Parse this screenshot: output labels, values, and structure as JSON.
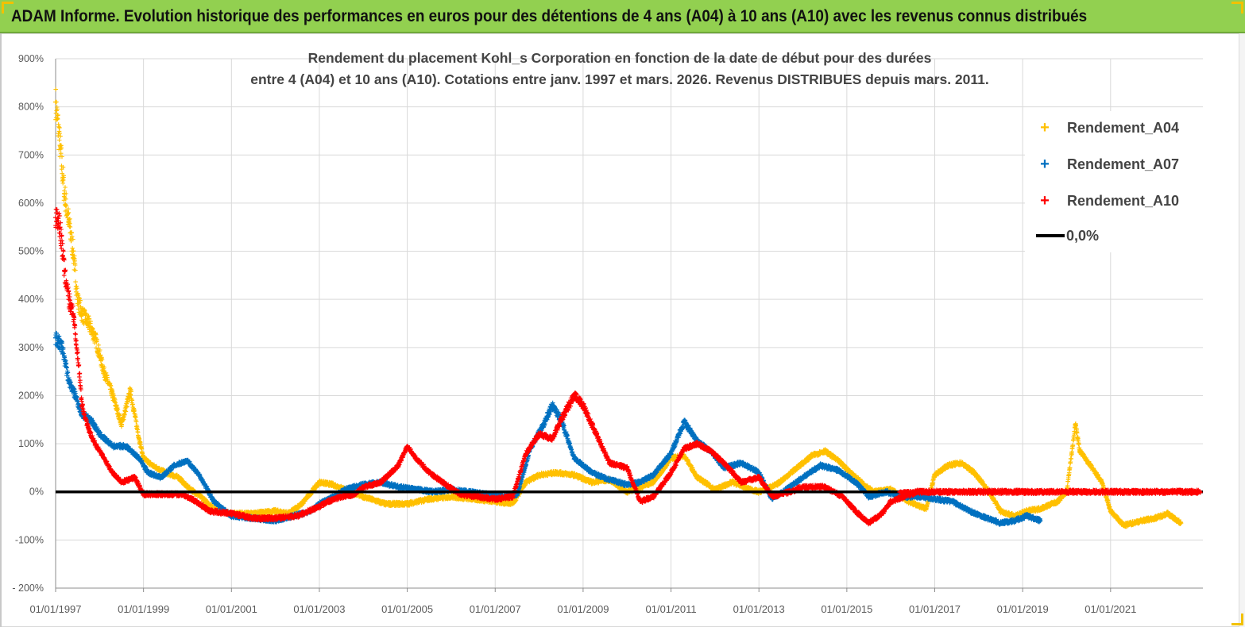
{
  "header": {
    "title": "ADAM Informe. Evolution historique des performances en euros pour des détentions de 4 ans (A04) à 10 ans (A10) avec les revenus connus distribués"
  },
  "colors": {
    "banner": "#92d050",
    "a04": "#ffc000",
    "a07": "#0070c0",
    "a10": "#ff0000",
    "zero": "#000000"
  },
  "chart_data": {
    "type": "scatter",
    "title_lines": [
      "Rendement du placement Kohl_s Corporation en fonction de la date de début pour des durées",
      "entre 4 (A04) et 10 ans (A10). Cotations entre janv. 1997 et mars. 2026. Revenus DISTRIBUES depuis mars. 2011."
    ],
    "xlabel": "",
    "ylabel": "",
    "x_range": [
      1997.0,
      2023.1
    ],
    "ylim": [
      -200,
      900
    ],
    "y_ticks": [
      -200,
      -100,
      0,
      100,
      200,
      300,
      400,
      500,
      600,
      700,
      800,
      900
    ],
    "y_tick_labels": [
      "- 200%",
      "-100%",
      "0%",
      "100%",
      "200%",
      "300%",
      "400%",
      "500%",
      "600%",
      "700%",
      "800%",
      "900%"
    ],
    "x_ticks": [
      1997,
      1999,
      2001,
      2003,
      2005,
      2007,
      2009,
      2011,
      2013,
      2015,
      2017,
      2019,
      2021
    ],
    "x_tick_labels": [
      "01/01/1997",
      "01/01/1999",
      "01/01/2001",
      "01/01/2003",
      "01/01/2005",
      "01/01/2007",
      "01/01/2009",
      "01/01/2011",
      "01/01/2013",
      "01/01/2015",
      "01/01/2017",
      "01/01/2019",
      "01/01/2021"
    ],
    "grid": true,
    "legend_position": "top-right",
    "series": [
      {
        "name": "Rendement_A04",
        "color": "#ffc000",
        "points": [
          [
            1997.0,
            810
          ],
          [
            1997.1,
            720
          ],
          [
            1997.2,
            620
          ],
          [
            1997.3,
            560
          ],
          [
            1997.4,
            500
          ],
          [
            1997.5,
            400
          ],
          [
            1997.6,
            370
          ],
          [
            1997.75,
            350
          ],
          [
            1997.9,
            320
          ],
          [
            1998.1,
            250
          ],
          [
            1998.3,
            200
          ],
          [
            1998.5,
            140
          ],
          [
            1998.7,
            210
          ],
          [
            1998.9,
            110
          ],
          [
            1999.0,
            70
          ],
          [
            1999.2,
            55
          ],
          [
            1999.5,
            40
          ],
          [
            1999.8,
            30
          ],
          [
            2000.0,
            10
          ],
          [
            2000.3,
            -10
          ],
          [
            2000.6,
            -35
          ],
          [
            2001.0,
            -45
          ],
          [
            2001.5,
            -45
          ],
          [
            2002.0,
            -40
          ],
          [
            2002.3,
            -45
          ],
          [
            2002.6,
            -25
          ],
          [
            2003.0,
            20
          ],
          [
            2003.3,
            15
          ],
          [
            2003.6,
            5
          ],
          [
            2004.0,
            -10
          ],
          [
            2004.5,
            -25
          ],
          [
            2005.0,
            -25
          ],
          [
            2005.5,
            -15
          ],
          [
            2006.0,
            -10
          ],
          [
            2006.5,
            -15
          ],
          [
            2007.0,
            -20
          ],
          [
            2007.4,
            -25
          ],
          [
            2007.7,
            20
          ],
          [
            2008.0,
            35
          ],
          [
            2008.4,
            40
          ],
          [
            2008.8,
            35
          ],
          [
            2009.2,
            20
          ],
          [
            2009.6,
            25
          ],
          [
            2010.0,
            0
          ],
          [
            2010.3,
            10
          ],
          [
            2010.6,
            20
          ],
          [
            2011.0,
            70
          ],
          [
            2011.3,
            75
          ],
          [
            2011.6,
            30
          ],
          [
            2012.0,
            5
          ],
          [
            2012.4,
            20
          ],
          [
            2012.8,
            5
          ],
          [
            2013.0,
            0
          ],
          [
            2013.4,
            15
          ],
          [
            2013.8,
            45
          ],
          [
            2014.2,
            75
          ],
          [
            2014.5,
            85
          ],
          [
            2014.8,
            65
          ],
          [
            2015.2,
            30
          ],
          [
            2015.6,
            0
          ],
          [
            2016.0,
            5
          ],
          [
            2016.4,
            -20
          ],
          [
            2016.8,
            -35
          ],
          [
            2017.0,
            35
          ],
          [
            2017.3,
            55
          ],
          [
            2017.6,
            60
          ],
          [
            2017.9,
            40
          ],
          [
            2018.2,
            5
          ],
          [
            2018.5,
            -40
          ],
          [
            2018.8,
            -50
          ],
          [
            2019.1,
            -40
          ],
          [
            2019.4,
            -35
          ],
          [
            2019.8,
            -20
          ],
          [
            2020.0,
            0
          ],
          [
            2020.2,
            140
          ],
          [
            2020.3,
            85
          ],
          [
            2020.5,
            60
          ],
          [
            2020.8,
            20
          ],
          [
            2021.0,
            -40
          ],
          [
            2021.3,
            -70
          ],
          [
            2021.7,
            -60
          ],
          [
            2022.0,
            -55
          ],
          [
            2022.3,
            -45
          ],
          [
            2022.6,
            -65
          ]
        ]
      },
      {
        "name": "Rendement_A07",
        "color": "#0070c0",
        "points": [
          [
            1997.0,
            320
          ],
          [
            1997.15,
            300
          ],
          [
            1997.3,
            230
          ],
          [
            1997.45,
            200
          ],
          [
            1997.6,
            160
          ],
          [
            1997.8,
            150
          ],
          [
            1998.0,
            120
          ],
          [
            1998.3,
            95
          ],
          [
            1998.6,
            95
          ],
          [
            1998.9,
            70
          ],
          [
            1999.1,
            40
          ],
          [
            1999.4,
            30
          ],
          [
            1999.7,
            55
          ],
          [
            2000.0,
            65
          ],
          [
            2000.3,
            30
          ],
          [
            2000.6,
            -20
          ],
          [
            2001.0,
            -50
          ],
          [
            2001.5,
            -55
          ],
          [
            2002.0,
            -60
          ],
          [
            2002.4,
            -50
          ],
          [
            2002.8,
            -40
          ],
          [
            2003.0,
            -25
          ],
          [
            2003.3,
            -10
          ],
          [
            2003.6,
            5
          ],
          [
            2004.0,
            15
          ],
          [
            2004.4,
            20
          ],
          [
            2004.8,
            10
          ],
          [
            2005.2,
            5
          ],
          [
            2005.6,
            0
          ],
          [
            2006.0,
            5
          ],
          [
            2006.4,
            0
          ],
          [
            2006.8,
            -5
          ],
          [
            2007.2,
            -10
          ],
          [
            2007.5,
            -5
          ],
          [
            2007.8,
            90
          ],
          [
            2008.1,
            140
          ],
          [
            2008.3,
            180
          ],
          [
            2008.5,
            150
          ],
          [
            2008.8,
            70
          ],
          [
            2009.2,
            40
          ],
          [
            2009.6,
            25
          ],
          [
            2010.0,
            15
          ],
          [
            2010.3,
            20
          ],
          [
            2010.6,
            35
          ],
          [
            2011.0,
            80
          ],
          [
            2011.3,
            145
          ],
          [
            2011.6,
            105
          ],
          [
            2011.9,
            85
          ],
          [
            2012.2,
            50
          ],
          [
            2012.6,
            60
          ],
          [
            2013.0,
            40
          ],
          [
            2013.3,
            -15
          ],
          [
            2013.7,
            10
          ],
          [
            2014.0,
            30
          ],
          [
            2014.4,
            55
          ],
          [
            2014.8,
            45
          ],
          [
            2015.2,
            20
          ],
          [
            2015.5,
            -10
          ],
          [
            2015.9,
            0
          ],
          [
            2016.3,
            -10
          ],
          [
            2016.7,
            -10
          ],
          [
            2017.0,
            -15
          ],
          [
            2017.4,
            -20
          ],
          [
            2017.8,
            -40
          ],
          [
            2018.2,
            -55
          ],
          [
            2018.5,
            -65
          ],
          [
            2018.8,
            -60
          ],
          [
            2019.1,
            -50
          ],
          [
            2019.4,
            -60
          ]
        ]
      },
      {
        "name": "Rendement_A10",
        "color": "#ff0000",
        "points": [
          [
            1997.0,
            570
          ],
          [
            1997.1,
            550
          ],
          [
            1997.2,
            460
          ],
          [
            1997.3,
            400
          ],
          [
            1997.4,
            370
          ],
          [
            1997.5,
            290
          ],
          [
            1997.6,
            180
          ],
          [
            1997.75,
            130
          ],
          [
            1997.9,
            100
          ],
          [
            1998.1,
            70
          ],
          [
            1998.3,
            40
          ],
          [
            1998.5,
            20
          ],
          [
            1998.8,
            30
          ],
          [
            1999.0,
            -5
          ],
          [
            1999.3,
            -5
          ],
          [
            1999.6,
            -5
          ],
          [
            1999.9,
            -5
          ],
          [
            2000.2,
            -20
          ],
          [
            2000.5,
            -40
          ],
          [
            2001.0,
            -45
          ],
          [
            2001.5,
            -55
          ],
          [
            2002.0,
            -55
          ],
          [
            2002.5,
            -50
          ],
          [
            2002.9,
            -35
          ],
          [
            2003.2,
            -20
          ],
          [
            2003.5,
            -10
          ],
          [
            2003.8,
            -5
          ],
          [
            2004.0,
            10
          ],
          [
            2004.4,
            20
          ],
          [
            2004.8,
            55
          ],
          [
            2005.0,
            95
          ],
          [
            2005.2,
            70
          ],
          [
            2005.5,
            40
          ],
          [
            2005.8,
            20
          ],
          [
            2006.2,
            -5
          ],
          [
            2006.6,
            -10
          ],
          [
            2007.0,
            -15
          ],
          [
            2007.4,
            -10
          ],
          [
            2007.7,
            80
          ],
          [
            2008.0,
            120
          ],
          [
            2008.3,
            110
          ],
          [
            2008.5,
            150
          ],
          [
            2008.8,
            200
          ],
          [
            2009.0,
            180
          ],
          [
            2009.3,
            120
          ],
          [
            2009.6,
            60
          ],
          [
            2010.0,
            50
          ],
          [
            2010.3,
            -20
          ],
          [
            2010.6,
            -10
          ],
          [
            2011.0,
            40
          ],
          [
            2011.3,
            90
          ],
          [
            2011.6,
            100
          ],
          [
            2011.9,
            85
          ],
          [
            2012.2,
            60
          ],
          [
            2012.6,
            20
          ],
          [
            2013.0,
            30
          ],
          [
            2013.3,
            -10
          ],
          [
            2013.7,
            0
          ],
          [
            2014.0,
            10
          ],
          [
            2014.5,
            10
          ],
          [
            2014.9,
            -10
          ],
          [
            2015.2,
            -40
          ],
          [
            2015.5,
            -65
          ],
          [
            2015.8,
            -45
          ],
          [
            2016.0,
            -20
          ],
          [
            2016.3,
            -10
          ],
          [
            2016.6,
            0
          ],
          [
            2017.0,
            0
          ],
          [
            2018.0,
            0
          ],
          [
            2019.0,
            0
          ],
          [
            2020.0,
            0
          ],
          [
            2021.0,
            0
          ],
          [
            2022.0,
            0
          ],
          [
            2023.0,
            0
          ]
        ]
      },
      {
        "name": "0,0%",
        "color": "#000000",
        "kind": "line",
        "points": [
          [
            1997.0,
            0
          ],
          [
            2023.1,
            0
          ]
        ]
      }
    ]
  }
}
